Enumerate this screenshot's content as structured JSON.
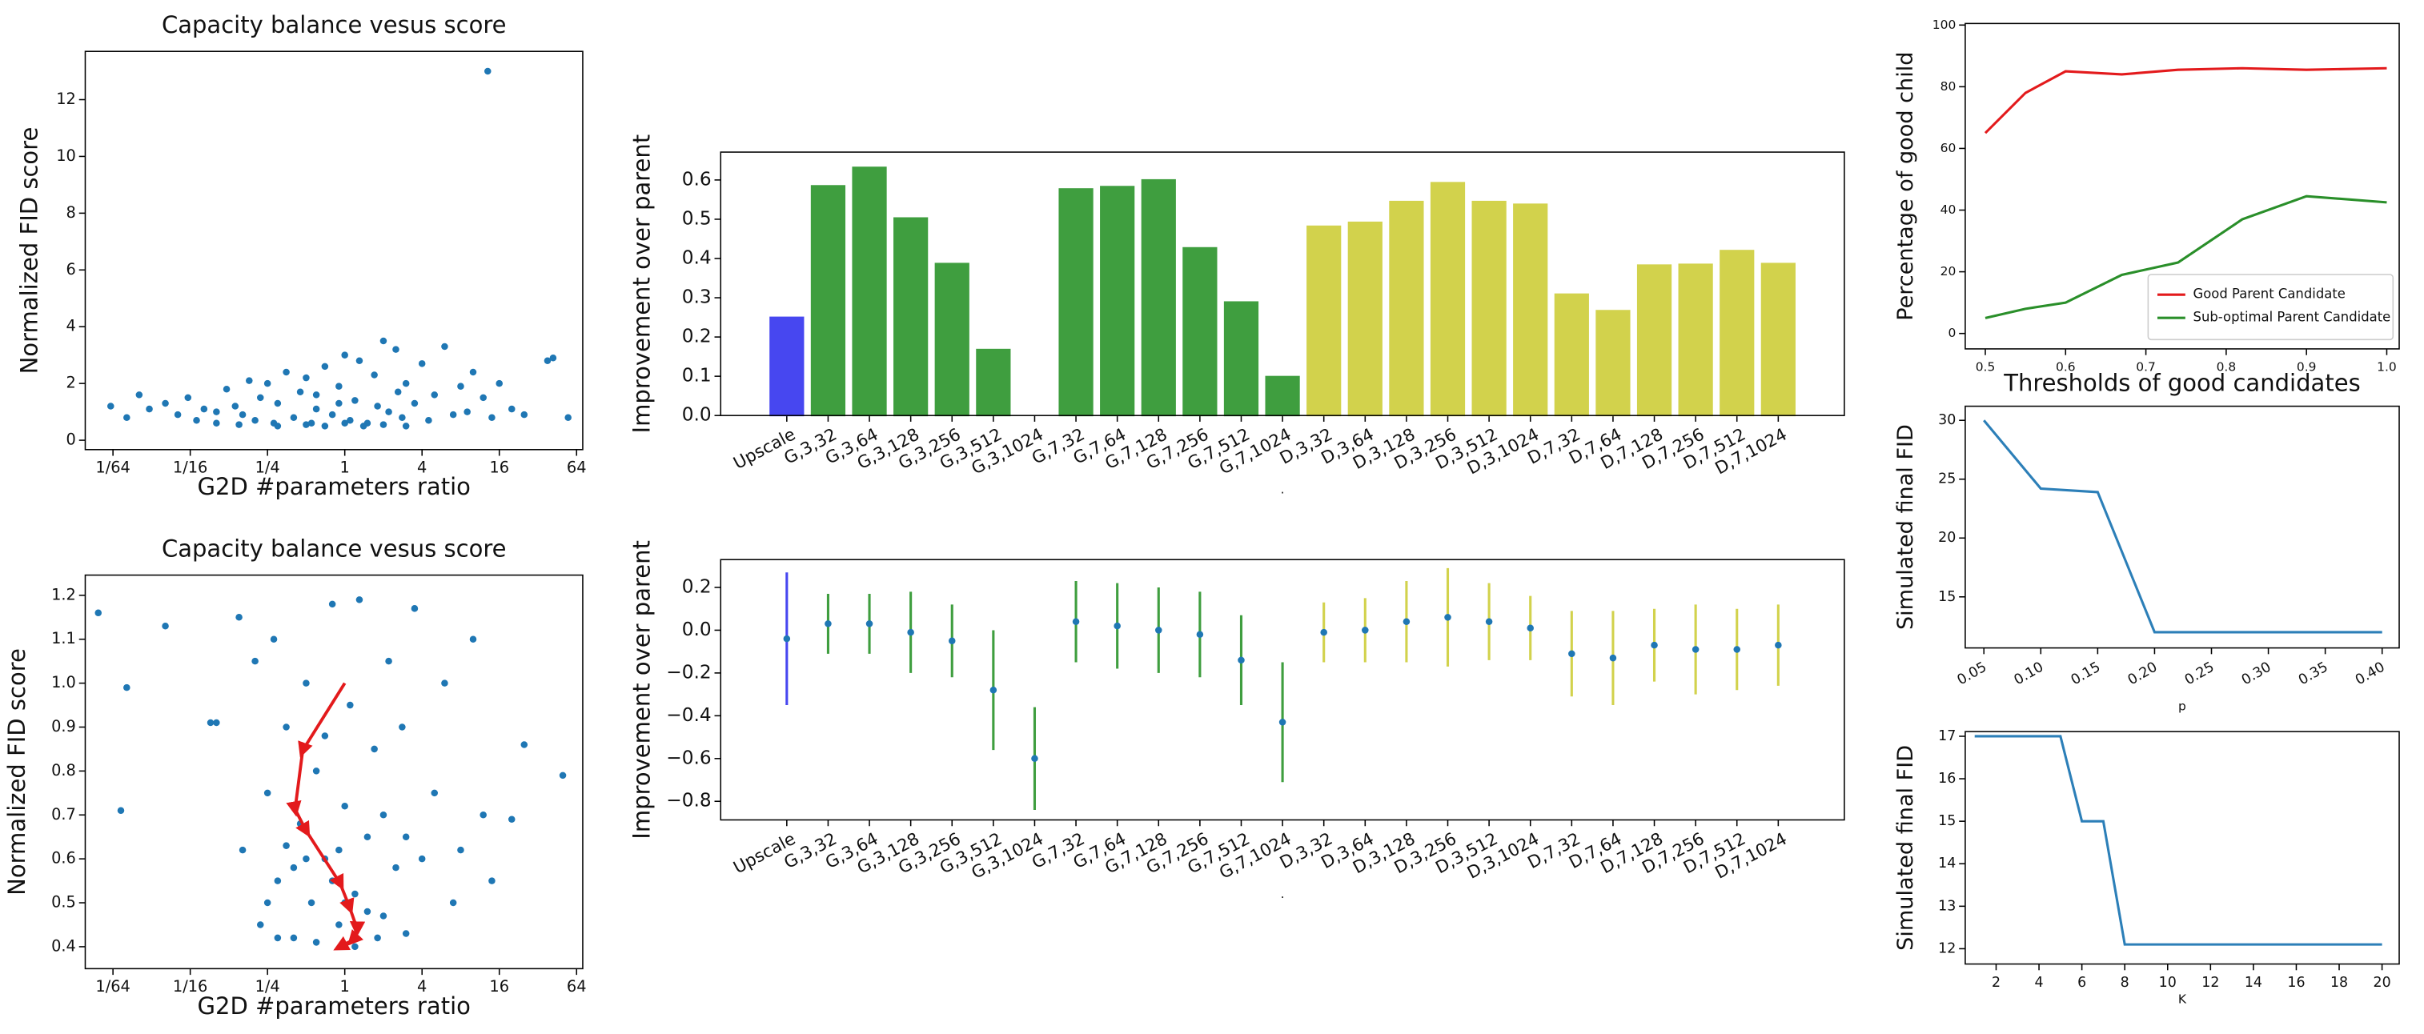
{
  "chart_data": [
    {
      "type": "scatter",
      "title": "Capacity balance vesus score",
      "xlabel": "G2D #parameters ratio",
      "ylabel": "Normalized FID score",
      "xscale": "log",
      "color": "#1f77b4",
      "xlim": [
        0.0095,
        71.5
      ],
      "ylim": [
        -0.33,
        13.7
      ],
      "xticks": [
        {
          "value": 0.015625,
          "label": "1/64"
        },
        {
          "value": 0.0625,
          "label": "1/16"
        },
        {
          "value": 0.25,
          "label": "1/4"
        },
        1,
        4,
        16,
        64
      ],
      "yticks": [
        0,
        2,
        4,
        6,
        8,
        10,
        12
      ],
      "x": [
        0.015,
        0.02,
        0.025,
        0.03,
        0.04,
        0.05,
        0.06,
        0.07,
        0.08,
        0.1,
        0.12,
        0.14,
        0.16,
        0.18,
        0.2,
        0.22,
        0.25,
        0.28,
        0.3,
        0.35,
        0.4,
        0.45,
        0.5,
        0.55,
        0.6,
        0.7,
        0.8,
        0.9,
        1.0,
        1.1,
        1.2,
        1.3,
        1.5,
        1.7,
        2.0,
        2.2,
        2.5,
        2.8,
        3.0,
        3.5,
        4.0,
        4.5,
        5.0,
        6.0,
        7.0,
        8.0,
        9,
        10,
        12,
        13,
        14,
        16,
        20,
        25,
        38,
        42,
        55,
        0.3,
        0.5,
        0.7,
        1.0,
        1.4,
        2,
        3,
        0.15,
        0.1,
        0.6,
        1.8,
        2.6,
        0.9
      ],
      "y": [
        1.2,
        0.8,
        1.6,
        1.1,
        1.3,
        0.9,
        1.5,
        0.7,
        1.1,
        0.6,
        1.8,
        1.2,
        0.9,
        2.1,
        0.7,
        1.5,
        2.0,
        0.6,
        1.3,
        2.4,
        0.8,
        1.7,
        2.2,
        0.6,
        1.1,
        2.6,
        0.9,
        1.9,
        3.0,
        0.7,
        1.4,
        2.8,
        0.6,
        2.3,
        3.5,
        1.0,
        3.2,
        0.8,
        2.0,
        1.3,
        2.7,
        0.7,
        1.6,
        3.3,
        0.9,
        1.9,
        1.0,
        2.4,
        1.5,
        13.0,
        0.8,
        2.0,
        1.1,
        0.9,
        2.8,
        2.9,
        0.8,
        0.5,
        0.55,
        0.5,
        0.6,
        0.5,
        0.55,
        0.5,
        0.55,
        1.0,
        1.6,
        1.2,
        1.7,
        1.3
      ]
    },
    {
      "type": "scatter",
      "title": "Capacity balance vesus score",
      "xlabel": "G2D #parameters ratio",
      "ylabel": "Normalized FID score",
      "xscale": "log",
      "color": "#1f77b4",
      "xlim": [
        0.0095,
        71.5
      ],
      "ylim": [
        0.35,
        1.246
      ],
      "xticks": [
        {
          "value": 0.015625,
          "label": "1/64"
        },
        {
          "value": 0.0625,
          "label": "1/16"
        },
        {
          "value": 0.25,
          "label": "1/4"
        },
        1,
        4,
        16,
        64
      ],
      "yticks": [
        0.4,
        0.5,
        0.6,
        0.7,
        0.8,
        0.9,
        {
          "value": 1,
          "label": "1.0"
        },
        1.1,
        1.2
      ],
      "x": [
        0.012,
        0.018,
        0.02,
        0.04,
        0.09,
        0.1,
        0.15,
        0.16,
        0.2,
        0.22,
        0.25,
        0.28,
        0.3,
        0.35,
        0.4,
        0.45,
        0.5,
        0.55,
        0.6,
        0.7,
        0.8,
        0.9,
        1.0,
        1.1,
        1.2,
        1.3,
        1.5,
        1.7,
        2.0,
        2.2,
        2.5,
        2.8,
        3.0,
        3.5,
        4.0,
        5.0,
        6,
        7,
        8,
        10,
        12,
        14,
        20,
        25,
        50,
        0.3,
        0.6,
        1.2,
        0.5,
        0.8,
        1.5,
        0.4,
        2,
        0.7,
        1,
        3,
        0.25,
        0.35,
        1.8,
        0.9
      ],
      "y": [
        1.16,
        0.71,
        0.99,
        1.13,
        0.91,
        0.91,
        1.15,
        0.62,
        1.05,
        0.45,
        0.75,
        1.1,
        0.55,
        0.9,
        0.42,
        0.68,
        1.0,
        0.5,
        0.8,
        0.6,
        1.18,
        0.45,
        0.72,
        0.95,
        0.52,
        1.19,
        0.65,
        0.85,
        0.47,
        1.05,
        0.58,
        0.9,
        0.43,
        1.17,
        0.6,
        0.75,
        1.0,
        0.5,
        0.62,
        1.1,
        0.7,
        0.55,
        0.69,
        0.86,
        0.79,
        0.42,
        0.41,
        0.4,
        0.6,
        0.55,
        0.48,
        0.58,
        0.7,
        0.88,
        0.5,
        0.65,
        0.5,
        0.63,
        0.42,
        0.62
      ],
      "path": {
        "color": "#e31a1c",
        "x": [
          1,
          0.47,
          0.41,
          0.5,
          0.92,
          1.09,
          1.25,
          1.15,
          0.92
        ],
        "y": [
          1.0,
          0.847,
          0.713,
          0.664,
          0.544,
          0.49,
          0.44,
          0.415,
          0.4
        ]
      }
    },
    {
      "type": "bar",
      "xlabel": ".",
      "ylabel": "Improvement over parent",
      "categories": [
        "Upscale",
        "G,3,32",
        "G,3,64",
        "G,3,128",
        "G,3,256",
        "G,3,512",
        "G,3,1024",
        "G,7,32",
        "G,7,64",
        "G,7,128",
        "G,7,256",
        "G,7,512",
        "G,7,1024",
        "D,3,32",
        "D,3,64",
        "D,3,128",
        "D,3,256",
        "D,3,512",
        "D,3,1024",
        "D,7,32",
        "D,7,64",
        "D,7,128",
        "D,7,256",
        "D,7,512",
        "D,7,1024"
      ],
      "values": [
        0.25,
        0.585,
        0.632,
        0.503,
        0.387,
        0.168,
        null,
        0.577,
        0.583,
        0.6,
        0.427,
        0.289,
        0.099,
        0.482,
        0.492,
        0.545,
        0.593,
        0.545,
        0.538,
        0.309,
        0.267,
        0.383,
        0.385,
        0.42,
        0.387
      ],
      "colors": [
        "#4747f0",
        "#3f9e3f",
        "#3f9e3f",
        "#3f9e3f",
        "#3f9e3f",
        "#3f9e3f",
        "#3f9e3f",
        "#3f9e3f",
        "#3f9e3f",
        "#3f9e3f",
        "#3f9e3f",
        "#3f9e3f",
        "#3f9e3f",
        "#d2d24c",
        "#d2d24c",
        "#d2d24c",
        "#d2d24c",
        "#d2d24c",
        "#d2d24c",
        "#d2d24c",
        "#d2d24c",
        "#d2d24c",
        "#d2d24c",
        "#d2d24c",
        "#d2d24c"
      ],
      "ylim": [
        0,
        0.671
      ],
      "yticks": [
        {
          "value": 0,
          "label": "0.0"
        },
        0.1,
        0.2,
        0.3,
        0.4,
        0.5,
        0.6
      ]
    },
    {
      "type": "errorbar",
      "xlabel": ".",
      "ylabel": "Improvement over parent",
      "point_color": "#1f77b4",
      "categories": [
        "Upscale",
        "G,3,32",
        "G,3,64",
        "G,3,128",
        "G,3,256",
        "G,3,512",
        "G,3,1024",
        "G,7,32",
        "G,7,64",
        "G,7,128",
        "G,7,256",
        "G,7,512",
        "G,7,1024",
        "D,3,32",
        "D,3,64",
        "D,3,128",
        "D,3,256",
        "D,3,512",
        "D,3,1024",
        "D,7,32",
        "D,7,64",
        "D,7,128",
        "D,7,256",
        "D,7,512",
        "D,7,1024"
      ],
      "values": [
        -0.04,
        0.03,
        0.03,
        -0.01,
        -0.05,
        -0.28,
        -0.6,
        0.04,
        0.02,
        0,
        -0.02,
        -0.14,
        -0.43,
        -0.01,
        0,
        0.04,
        0.06,
        0.04,
        0.01,
        -0.11,
        -0.13,
        -0.07,
        -0.09,
        -0.09,
        -0.07
      ],
      "errors": [
        0.31,
        0.14,
        0.14,
        0.19,
        0.17,
        0.28,
        0.24,
        0.19,
        0.2,
        0.2,
        0.2,
        0.21,
        0.28,
        0.14,
        0.15,
        0.19,
        0.23,
        0.18,
        0.15,
        0.2,
        0.22,
        0.17,
        0.21,
        0.19,
        0.19
      ],
      "colors": [
        "#4747f0",
        "#3f9e3f",
        "#3f9e3f",
        "#3f9e3f",
        "#3f9e3f",
        "#3f9e3f",
        "#3f9e3f",
        "#3f9e3f",
        "#3f9e3f",
        "#3f9e3f",
        "#3f9e3f",
        "#3f9e3f",
        "#3f9e3f",
        "#d2d24c",
        "#d2d24c",
        "#d2d24c",
        "#d2d24c",
        "#d2d24c",
        "#d2d24c",
        "#d2d24c",
        "#d2d24c",
        "#d2d24c",
        "#d2d24c",
        "#d2d24c",
        "#d2d24c"
      ],
      "ylim": [
        -0.887,
        0.33
      ],
      "yticks": [
        0.2,
        {
          "value": 0,
          "label": "0.0"
        },
        {
          "value": -0.2,
          "label": "−0.2"
        },
        {
          "value": -0.4,
          "label": "−0.4"
        },
        {
          "value": -0.6,
          "label": "−0.6"
        },
        {
          "value": -0.8,
          "label": "−0.8"
        }
      ]
    },
    {
      "type": "line",
      "xlabel": "Thresholds of good candidates",
      "ylabel": "Percentage of good child",
      "legend": "lower right",
      "x": [
        0.5,
        0.55,
        0.6,
        0.67,
        0.74,
        0.82,
        0.9,
        1.0
      ],
      "series": [
        {
          "name": "Good Parent Candidate",
          "color": "#e31a1c",
          "values": [
            65,
            78,
            85,
            84,
            85.5,
            86,
            85.5,
            86
          ]
        },
        {
          "name": "Sub-optimal Parent Candidate",
          "color": "#2a8f2a",
          "values": [
            5,
            8,
            10,
            19,
            23,
            37,
            44.5,
            42.5
          ]
        }
      ],
      "xlim": [
        0.475,
        1.0155
      ],
      "ylim": [
        -5,
        100.5
      ],
      "xticks": [
        0.5,
        0.6,
        0.7,
        0.8,
        0.9,
        {
          "value": 1,
          "label": "1.0"
        }
      ],
      "yticks": [
        0,
        20,
        40,
        60,
        80,
        100
      ]
    },
    {
      "type": "line",
      "xlabel": "p",
      "ylabel": "Simulated final FID",
      "rotate_xticks": true,
      "x": [
        0.05,
        0.1,
        0.15,
        0.2,
        0.4
      ],
      "series": [
        {
          "color": "#2c7fb8",
          "values": [
            30,
            24.2,
            23.9,
            12,
            12
          ]
        }
      ],
      "xlim": [
        0.0336,
        0.415
      ],
      "ylim": [
        10.66,
        31.2
      ],
      "xticks": [
        0.05,
        {
          "value": 0.1,
          "label": "0.10"
        },
        0.15,
        {
          "value": 0.2,
          "label": "0.20"
        },
        0.25,
        {
          "value": 0.3,
          "label": "0.30"
        },
        0.35,
        {
          "value": 0.4,
          "label": "0.40"
        }
      ],
      "yticks": [
        15,
        20,
        25,
        30
      ]
    },
    {
      "type": "line",
      "xlabel": "K",
      "ylabel": "Simulated final FID",
      "x": [
        1,
        5,
        6,
        7,
        8,
        20
      ],
      "series": [
        {
          "color": "#2c7fb8",
          "values": [
            17,
            17,
            15,
            15,
            12.1,
            12.1
          ]
        }
      ],
      "xlim": [
        0.56,
        20.8
      ],
      "ylim": [
        11.64,
        17.11
      ],
      "xticks": [
        2,
        4,
        6,
        8,
        10,
        12,
        14,
        16,
        18,
        20
      ],
      "yticks": [
        12,
        13,
        14,
        15,
        16,
        17
      ]
    }
  ]
}
